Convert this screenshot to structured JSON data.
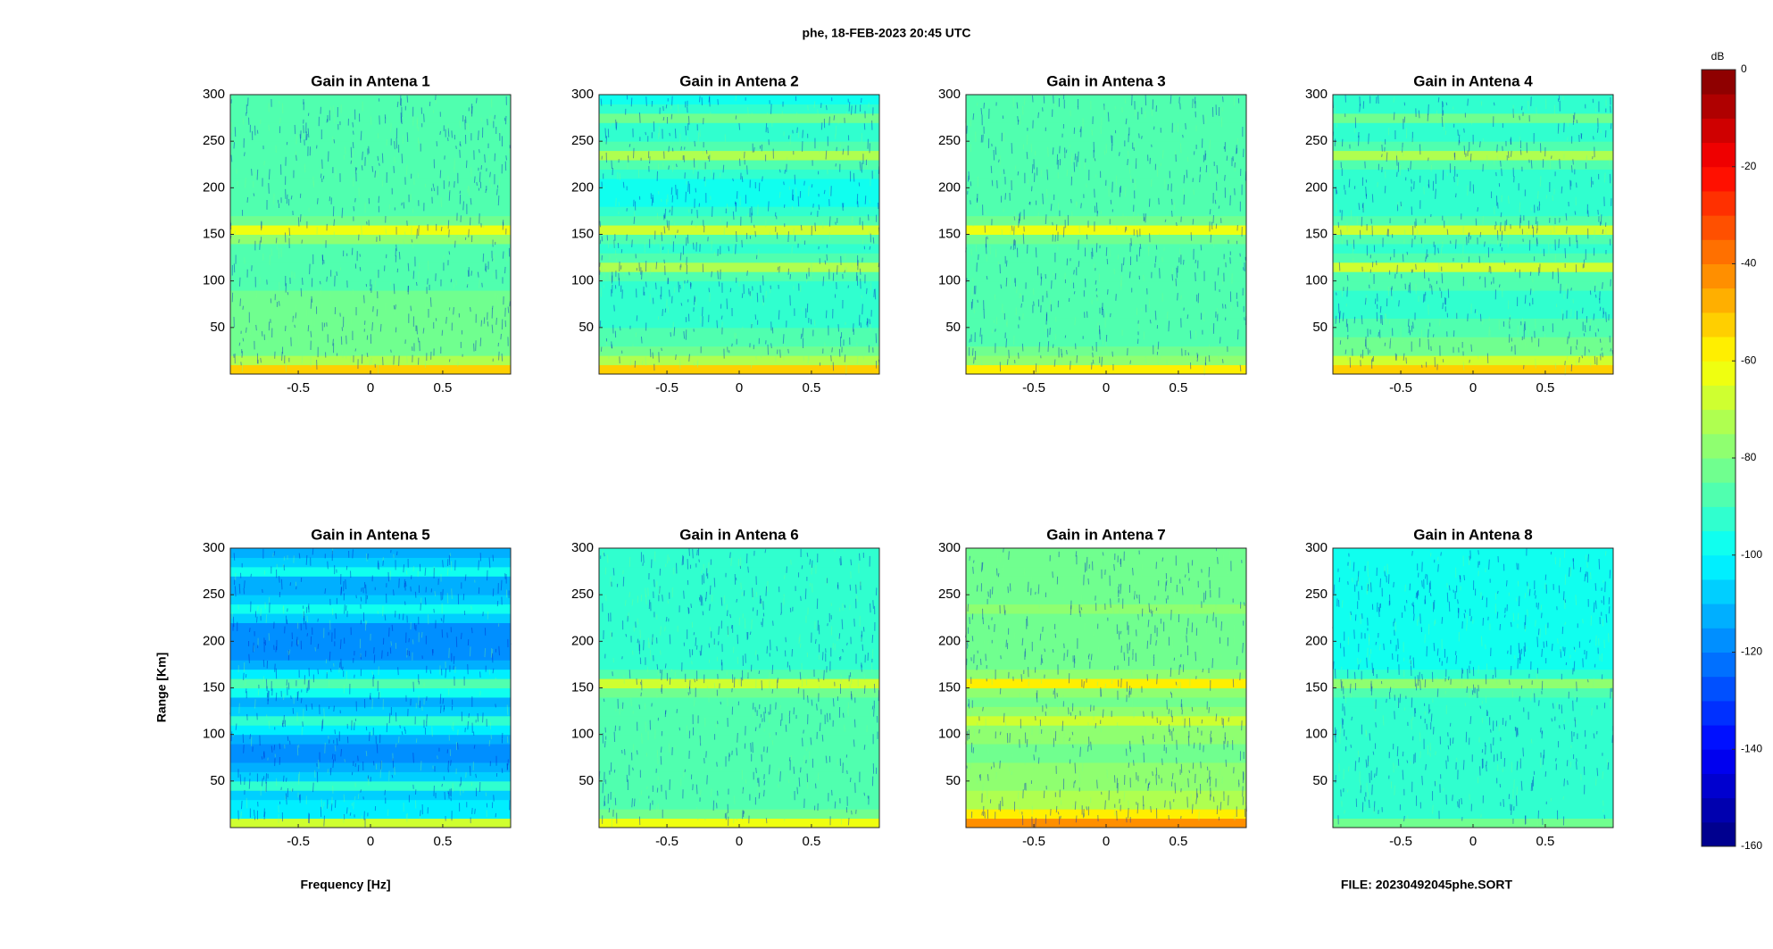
{
  "title": "phe, 18-FEB-2023 20:45 UTC",
  "xlabel": "Frequency [Hz]",
  "ylabel": "Range [Km]",
  "footer": "FILE: 20230492045phe.SORT",
  "colorbar": {
    "label": "dB",
    "clim": [
      -160,
      0
    ],
    "ticks": [
      0,
      -20,
      -40,
      -60,
      -80,
      -100,
      -120,
      -140,
      -160
    ],
    "colormap": "jet",
    "levels": 32
  },
  "chart_data": [
    {
      "type": "heatmap",
      "title": "Gain in Antena 1",
      "xlim": [
        -0.97,
        0.97
      ],
      "ylim": [
        0,
        300
      ],
      "xticks": [
        -0.5,
        0,
        0.5
      ],
      "yticks": [
        50,
        100,
        150,
        200,
        250,
        300
      ],
      "values": [
        -55,
        -75,
        -82,
        -83,
        -82,
        -84,
        -84,
        -85,
        -85,
        -86,
        -86,
        -86,
        -87,
        -86,
        -80,
        -65,
        -82,
        -88,
        -88,
        -88,
        -88,
        -88,
        -88,
        -88,
        -88,
        -88,
        -88,
        -88,
        -88,
        -88
      ]
    },
    {
      "type": "heatmap",
      "title": "Gain in Antena 2",
      "xlim": [
        -0.97,
        0.97
      ],
      "ylim": [
        0,
        300
      ],
      "xticks": [
        -0.5,
        0,
        0.5
      ],
      "yticks": [
        50,
        100,
        150,
        200,
        250,
        300
      ],
      "values": [
        -55,
        -72,
        -84,
        -86,
        -88,
        -92,
        -94,
        -95,
        -95,
        -94,
        -90,
        -72,
        -88,
        -95,
        -88,
        -70,
        -88,
        -95,
        -96,
        -96,
        -96,
        -95,
        -90,
        -75,
        -90,
        -95,
        -95,
        -85,
        -95,
        -96
      ]
    },
    {
      "type": "heatmap",
      "title": "Gain in Antena 3",
      "xlim": [
        -0.97,
        0.97
      ],
      "ylim": [
        0,
        300
      ],
      "xticks": [
        -0.5,
        0,
        0.5
      ],
      "yticks": [
        50,
        100,
        150,
        200,
        250,
        300
      ],
      "values": [
        -58,
        -78,
        -85,
        -86,
        -87,
        -88,
        -88,
        -88,
        -88,
        -88,
        -88,
        -88,
        -88,
        -88,
        -82,
        -65,
        -84,
        -89,
        -89,
        -89,
        -89,
        -89,
        -89,
        -89,
        -89,
        -89,
        -89,
        -89,
        -89,
        -89
      ]
    },
    {
      "type": "heatmap",
      "title": "Gain in Antena 4",
      "xlim": [
        -0.97,
        0.97
      ],
      "ylim": [
        0,
        300
      ],
      "xticks": [
        -0.5,
        0,
        0.5
      ],
      "yticks": [
        50,
        100,
        150,
        200,
        250,
        300
      ],
      "values": [
        -52,
        -70,
        -82,
        -85,
        -87,
        -90,
        -92,
        -92,
        -92,
        -90,
        -86,
        -70,
        -86,
        -92,
        -86,
        -70,
        -86,
        -92,
        -93,
        -93,
        -93,
        -92,
        -88,
        -75,
        -88,
        -93,
        -93,
        -85,
        -93,
        -93
      ]
    },
    {
      "type": "heatmap",
      "title": "Gain in Antena 5",
      "xlim": [
        -0.97,
        0.97
      ],
      "ylim": [
        0,
        300
      ],
      "xticks": [
        -0.5,
        0,
        0.5
      ],
      "yticks": [
        50,
        100,
        150,
        200,
        250,
        300
      ],
      "values": [
        -70,
        -105,
        -105,
        -108,
        -95,
        -110,
        -114,
        -116,
        -116,
        -112,
        -105,
        -95,
        -108,
        -112,
        -100,
        -88,
        -105,
        -112,
        -116,
        -118,
        -118,
        -116,
        -108,
        -100,
        -108,
        -114,
        -112,
        -100,
        -110,
        -114
      ]
    },
    {
      "type": "heatmap",
      "title": "Gain in Antena 6",
      "xlim": [
        -0.97,
        0.97
      ],
      "ylim": [
        0,
        300
      ],
      "xticks": [
        -0.5,
        0,
        0.5
      ],
      "yticks": [
        50,
        100,
        150,
        200,
        250,
        300
      ],
      "values": [
        -65,
        -84,
        -87,
        -88,
        -89,
        -90,
        -90,
        -90,
        -90,
        -90,
        -90,
        -90,
        -90,
        -90,
        -84,
        -68,
        -86,
        -91,
        -91,
        -91,
        -91,
        -91,
        -91,
        -91,
        -91,
        -91,
        -91,
        -91,
        -91,
        -91
      ]
    },
    {
      "type": "heatmap",
      "title": "Gain in Antena 7",
      "xlim": [
        -0.97,
        0.97
      ],
      "ylim": [
        0,
        300
      ],
      "xticks": [
        -0.5,
        0,
        0.5
      ],
      "yticks": [
        50,
        100,
        150,
        200,
        250,
        300
      ],
      "values": [
        -45,
        -60,
        -72,
        -75,
        -78,
        -80,
        -80,
        -81,
        -81,
        -80,
        -78,
        -70,
        -78,
        -82,
        -76,
        -60,
        -78,
        -83,
        -84,
        -84,
        -84,
        -84,
        -82,
        -76,
        -82,
        -84,
        -84,
        -82,
        -84,
        -84
      ]
    },
    {
      "type": "heatmap",
      "title": "Gain in Antena 8",
      "xlim": [
        -0.97,
        0.97
      ],
      "ylim": [
        0,
        300
      ],
      "xticks": [
        -0.5,
        0,
        0.5
      ],
      "yticks": [
        50,
        100,
        150,
        200,
        250,
        300
      ],
      "values": [
        -85,
        -92,
        -94,
        -95,
        -95,
        -95,
        -95,
        -95,
        -95,
        -95,
        -95,
        -95,
        -95,
        -95,
        -90,
        -80,
        -92,
        -96,
        -96,
        -96,
        -96,
        -96,
        -96,
        -96,
        -96,
        -96,
        -96,
        -96,
        -96,
        -96
      ]
    }
  ]
}
